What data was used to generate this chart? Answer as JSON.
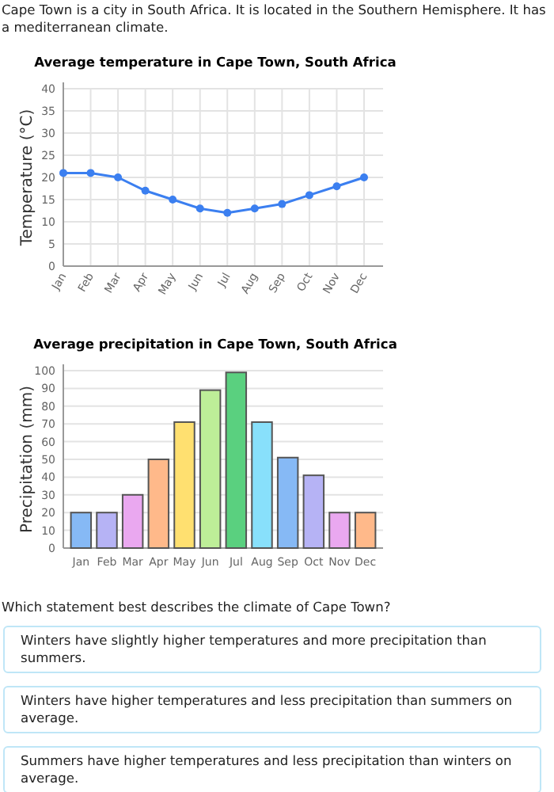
{
  "chart_data": [
    {
      "type": "other",
      "annotations": [
        "Cape Town is a city in South Africa. It is located in the Southern Hemisphere. It has a mediterranean climate."
      ]
    },
    {
      "type": "line",
      "title": "Average temperature in Cape Town, South Africa",
      "ylabel": "Temperature (°C)",
      "categories": [
        "Jan",
        "Feb",
        "Mar",
        "Apr",
        "May",
        "Jun",
        "Jul",
        "Aug",
        "Sep",
        "Oct",
        "Nov",
        "Dec"
      ],
      "series": [
        {
          "color": "#3b7ff0",
          "values": [
            21,
            21,
            20,
            17,
            15,
            13,
            12,
            13,
            14,
            16,
            18,
            20
          ]
        }
      ],
      "ylim": [
        0,
        40
      ],
      "yticks": [
        0,
        5,
        10,
        15,
        20,
        25,
        30,
        35,
        40
      ],
      "grid": true,
      "marker": "circle",
      "line_style": "solid"
    },
    {
      "type": "bar",
      "title": "Average precipitation in Cape Town, South Africa",
      "ylabel": "Precipitation (mm)",
      "categories": [
        "Jan",
        "Feb",
        "Mar",
        "Apr",
        "May",
        "Jun",
        "Jul",
        "Aug",
        "Sep",
        "Oct",
        "Nov",
        "Dec"
      ],
      "values": [
        20,
        20,
        30,
        50,
        71,
        89,
        99,
        71,
        51,
        41,
        20,
        20
      ],
      "colors": [
        "#86b9f5",
        "#b6b3f5",
        "#eaa8f0",
        "#ffb98a",
        "#ffe070",
        "#bdee98",
        "#5ad07f",
        "#88e0fb",
        "#86b9f5",
        "#b6b3f5",
        "#eaa8f0",
        "#ffb98a"
      ],
      "ylim": [
        0,
        100
      ],
      "yticks": [
        0,
        10,
        20,
        30,
        40,
        50,
        60,
        70,
        80,
        90,
        100
      ],
      "grid": "y"
    },
    {
      "type": "other",
      "title": "Which statement best describes the climate of Cape Town?",
      "annotations": [
        "Winters have slightly higher temperatures and more precipitation than summers.",
        "Winters have higher temperatures and less precipitation than summers on average.",
        "Summers have higher temperatures and less precipitation than winters on average."
      ]
    }
  ]
}
